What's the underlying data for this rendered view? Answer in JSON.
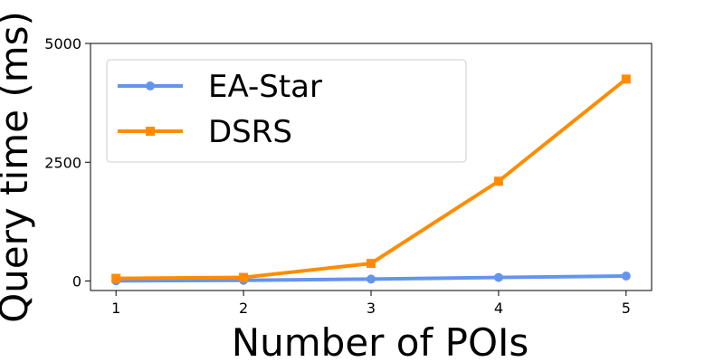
{
  "chart_data": {
    "type": "line",
    "title": "",
    "xlabel": "Number of POIs",
    "ylabel": "Query time (ms)",
    "x": [
      1,
      2,
      3,
      4,
      5
    ],
    "xticks": [
      "1",
      "2",
      "3",
      "4",
      "5"
    ],
    "yticks": [
      "0",
      "2500",
      "5000"
    ],
    "ytick_values": [
      0,
      2500,
      5000
    ],
    "xlim": [
      0.8,
      5.2
    ],
    "ylim": [
      -200,
      5000
    ],
    "grid": false,
    "legend_position": "top-left",
    "series": [
      {
        "name": "EA-Star",
        "color": "#6495ED",
        "marker": "circle",
        "values": [
          5,
          15,
          40,
          75,
          105
        ]
      },
      {
        "name": "DSRS",
        "color": "#FF8C00",
        "marker": "square",
        "values": [
          55,
          75,
          370,
          2100,
          4250
        ]
      }
    ]
  }
}
